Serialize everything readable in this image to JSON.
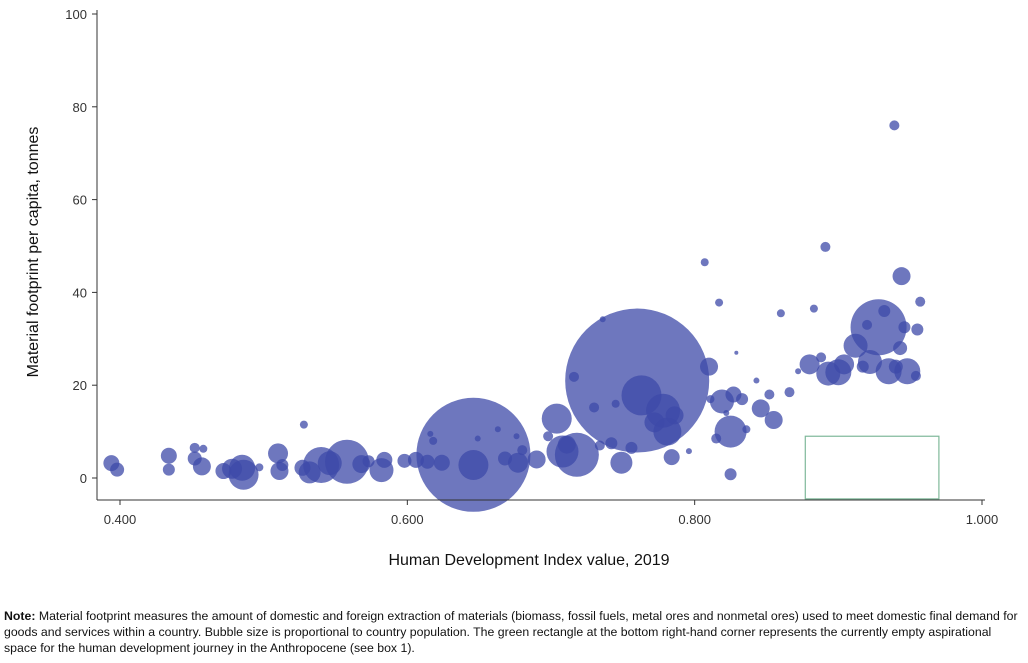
{
  "chart_data": {
    "type": "scatter",
    "title": "",
    "xlabel": "Human Development Index value, 2019",
    "ylabel": "Material footprint per capita, tonnes",
    "xlim": [
      0.39,
      1.0
    ],
    "ylim": [
      -5,
      101
    ],
    "x_ticks": [
      0.4,
      0.6,
      0.8,
      1.0
    ],
    "x_tick_labels": [
      "0.400",
      "0.600",
      "0.800",
      "1.000"
    ],
    "y_ticks": [
      0,
      20,
      40,
      60,
      80,
      100
    ],
    "y_tick_labels": [
      "0",
      "20",
      "40",
      "60",
      "80",
      "100"
    ],
    "bubble_size_encodes": "population",
    "bubble_color": "#3d4aa8",
    "bubble_opacity": 0.75,
    "grid": false,
    "aspirational_space": {
      "x": [
        0.877,
        0.97
      ],
      "y": [
        -4.5,
        9
      ],
      "color": "#7fb89a"
    },
    "points": [
      {
        "x": 0.394,
        "y": 3.2,
        "r": 8
      },
      {
        "x": 0.398,
        "y": 1.8,
        "r": 7
      },
      {
        "x": 0.434,
        "y": 4.8,
        "r": 8
      },
      {
        "x": 0.434,
        "y": 1.8,
        "r": 6
      },
      {
        "x": 0.452,
        "y": 6.5,
        "r": 5
      },
      {
        "x": 0.452,
        "y": 4.2,
        "r": 7
      },
      {
        "x": 0.458,
        "y": 6.3,
        "r": 4
      },
      {
        "x": 0.457,
        "y": 2.5,
        "r": 9
      },
      {
        "x": 0.472,
        "y": 1.5,
        "r": 8
      },
      {
        "x": 0.478,
        "y": 2.0,
        "r": 10
      },
      {
        "x": 0.485,
        "y": 2.2,
        "r": 13
      },
      {
        "x": 0.486,
        "y": 0.7,
        "r": 15
      },
      {
        "x": 0.497,
        "y": 2.3,
        "r": 4
      },
      {
        "x": 0.51,
        "y": 5.3,
        "r": 10
      },
      {
        "x": 0.511,
        "y": 1.5,
        "r": 9
      },
      {
        "x": 0.513,
        "y": 2.8,
        "r": 6
      },
      {
        "x": 0.528,
        "y": 11.5,
        "r": 4
      },
      {
        "x": 0.527,
        "y": 2.2,
        "r": 8
      },
      {
        "x": 0.532,
        "y": 1.2,
        "r": 11
      },
      {
        "x": 0.54,
        "y": 2.8,
        "r": 18
      },
      {
        "x": 0.546,
        "y": 3.2,
        "r": 12
      },
      {
        "x": 0.558,
        "y": 3.5,
        "r": 22
      },
      {
        "x": 0.568,
        "y": 3.0,
        "r": 9
      },
      {
        "x": 0.573,
        "y": 3.6,
        "r": 6
      },
      {
        "x": 0.582,
        "y": 1.7,
        "r": 12
      },
      {
        "x": 0.584,
        "y": 3.9,
        "r": 8
      },
      {
        "x": 0.598,
        "y": 3.7,
        "r": 7
      },
      {
        "x": 0.606,
        "y": 3.9,
        "r": 8
      },
      {
        "x": 0.614,
        "y": 3.5,
        "r": 7
      },
      {
        "x": 0.616,
        "y": 9.5,
        "r": 3
      },
      {
        "x": 0.618,
        "y": 8.0,
        "r": 4
      },
      {
        "x": 0.624,
        "y": 3.3,
        "r": 8
      },
      {
        "x": 0.646,
        "y": 5.0,
        "r": 57
      },
      {
        "x": 0.646,
        "y": 2.8,
        "r": 15
      },
      {
        "x": 0.649,
        "y": 8.5,
        "r": 3
      },
      {
        "x": 0.663,
        "y": 10.5,
        "r": 3
      },
      {
        "x": 0.668,
        "y": 4.2,
        "r": 7
      },
      {
        "x": 0.676,
        "y": 9.0,
        "r": 3
      },
      {
        "x": 0.68,
        "y": 6.0,
        "r": 5
      },
      {
        "x": 0.677,
        "y": 3.3,
        "r": 10
      },
      {
        "x": 0.69,
        "y": 4.0,
        "r": 9
      },
      {
        "x": 0.698,
        "y": 9.0,
        "r": 5
      },
      {
        "x": 0.704,
        "y": 12.8,
        "r": 15
      },
      {
        "x": 0.708,
        "y": 5.7,
        "r": 16
      },
      {
        "x": 0.711,
        "y": 7.2,
        "r": 9
      },
      {
        "x": 0.716,
        "y": 21.8,
        "r": 5
      },
      {
        "x": 0.718,
        "y": 5.0,
        "r": 22
      },
      {
        "x": 0.73,
        "y": 15.2,
        "r": 5
      },
      {
        "x": 0.734,
        "y": 7.0,
        "r": 5
      },
      {
        "x": 0.736,
        "y": 34.2,
        "r": 3
      },
      {
        "x": 0.742,
        "y": 7.5,
        "r": 6
      },
      {
        "x": 0.745,
        "y": 16.0,
        "r": 4
      },
      {
        "x": 0.749,
        "y": 3.3,
        "r": 11
      },
      {
        "x": 0.756,
        "y": 6.5,
        "r": 6
      },
      {
        "x": 0.76,
        "y": 21.0,
        "r": 72
      },
      {
        "x": 0.763,
        "y": 17.8,
        "r": 20
      },
      {
        "x": 0.772,
        "y": 12.0,
        "r": 10
      },
      {
        "x": 0.778,
        "y": 14.5,
        "r": 17
      },
      {
        "x": 0.781,
        "y": 10.0,
        "r": 14
      },
      {
        "x": 0.784,
        "y": 4.5,
        "r": 8
      },
      {
        "x": 0.786,
        "y": 13.5,
        "r": 9
      },
      {
        "x": 0.796,
        "y": 5.8,
        "r": 3
      },
      {
        "x": 0.807,
        "y": 46.5,
        "r": 4
      },
      {
        "x": 0.81,
        "y": 24.0,
        "r": 9
      },
      {
        "x": 0.811,
        "y": 17.0,
        "r": 4
      },
      {
        "x": 0.815,
        "y": 8.5,
        "r": 5
      },
      {
        "x": 0.817,
        "y": 37.8,
        "r": 4
      },
      {
        "x": 0.819,
        "y": 16.5,
        "r": 12
      },
      {
        "x": 0.822,
        "y": 14.0,
        "r": 3
      },
      {
        "x": 0.825,
        "y": 10.0,
        "r": 16
      },
      {
        "x": 0.825,
        "y": 0.8,
        "r": 6
      },
      {
        "x": 0.827,
        "y": 18.0,
        "r": 8
      },
      {
        "x": 0.829,
        "y": 27.0,
        "r": 2
      },
      {
        "x": 0.833,
        "y": 17.0,
        "r": 6
      },
      {
        "x": 0.836,
        "y": 10.5,
        "r": 4
      },
      {
        "x": 0.843,
        "y": 21.0,
        "r": 3
      },
      {
        "x": 0.846,
        "y": 15.0,
        "r": 9
      },
      {
        "x": 0.852,
        "y": 18.0,
        "r": 5
      },
      {
        "x": 0.855,
        "y": 12.5,
        "r": 9
      },
      {
        "x": 0.86,
        "y": 35.5,
        "r": 4
      },
      {
        "x": 0.866,
        "y": 18.5,
        "r": 5
      },
      {
        "x": 0.872,
        "y": 23.0,
        "r": 3
      },
      {
        "x": 0.88,
        "y": 24.5,
        "r": 10
      },
      {
        "x": 0.883,
        "y": 36.5,
        "r": 4
      },
      {
        "x": 0.888,
        "y": 26.0,
        "r": 5
      },
      {
        "x": 0.891,
        "y": 49.8,
        "r": 5
      },
      {
        "x": 0.893,
        "y": 22.5,
        "r": 12
      },
      {
        "x": 0.9,
        "y": 22.8,
        "r": 13
      },
      {
        "x": 0.904,
        "y": 24.5,
        "r": 10
      },
      {
        "x": 0.912,
        "y": 28.5,
        "r": 12
      },
      {
        "x": 0.917,
        "y": 24.0,
        "r": 6
      },
      {
        "x": 0.92,
        "y": 33.0,
        "r": 5
      },
      {
        "x": 0.922,
        "y": 25.0,
        "r": 12
      },
      {
        "x": 0.928,
        "y": 32.5,
        "r": 28
      },
      {
        "x": 0.932,
        "y": 36.0,
        "r": 6
      },
      {
        "x": 0.935,
        "y": 23.0,
        "r": 13
      },
      {
        "x": 0.939,
        "y": 76.0,
        "r": 5
      },
      {
        "x": 0.94,
        "y": 24.0,
        "r": 7
      },
      {
        "x": 0.943,
        "y": 28.0,
        "r": 7
      },
      {
        "x": 0.944,
        "y": 43.5,
        "r": 9
      },
      {
        "x": 0.946,
        "y": 32.5,
        "r": 6
      },
      {
        "x": 0.948,
        "y": 23.0,
        "r": 13
      },
      {
        "x": 0.954,
        "y": 22.0,
        "r": 5
      },
      {
        "x": 0.955,
        "y": 32.0,
        "r": 6
      },
      {
        "x": 0.957,
        "y": 38.0,
        "r": 5
      }
    ]
  },
  "note": {
    "label": "Note:",
    "text": " Material footprint measures the amount of domestic and foreign extraction of materials (biomass, fossil fuels, metal ores and nonmetal ores) used to meet domestic final demand for goods and services within a country. Bubble size is proportional to country population. The green rectangle at the bottom right-hand corner represents the currently empty aspirational space for the human development journey in the Anthropocene (see box 1)."
  }
}
